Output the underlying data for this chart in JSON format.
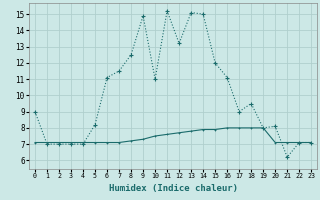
{
  "title": "",
  "xlabel": "Humidex (Indice chaleur)",
  "ylabel": "",
  "background_color": "#cce8e6",
  "grid_color": "#b0cfcd",
  "line_color": "#1a6b6b",
  "xlim": [
    -0.5,
    23.5
  ],
  "ylim": [
    5.5,
    15.7
  ],
  "yticks": [
    6,
    7,
    8,
    9,
    10,
    11,
    12,
    13,
    14,
    15
  ],
  "xtick_labels": [
    "0",
    "1",
    "2",
    "3",
    "4",
    "5",
    "6",
    "7",
    "8",
    "9",
    "10",
    "11",
    "12",
    "13",
    "14",
    "15",
    "16",
    "17",
    "18",
    "19",
    "20",
    "21",
    "22",
    "23"
  ],
  "series1_x": [
    0,
    1,
    2,
    3,
    4,
    5,
    6,
    7,
    8,
    9,
    10,
    11,
    12,
    13,
    14,
    15,
    16,
    17,
    18,
    19,
    20,
    21,
    22,
    23
  ],
  "series1_y": [
    9,
    7,
    7,
    7,
    7.0,
    8.2,
    11.1,
    11.5,
    12.5,
    14.9,
    11.0,
    15.2,
    13.2,
    15.1,
    15.0,
    12.0,
    11.1,
    9.0,
    9.5,
    8.0,
    8.1,
    6.2,
    7.1,
    7.1
  ],
  "series2_x": [
    0,
    1,
    2,
    3,
    4,
    5,
    6,
    7,
    8,
    9,
    10,
    11,
    12,
    13,
    14,
    15,
    16,
    17,
    18,
    19,
    20,
    21,
    22,
    23
  ],
  "series2_y": [
    7.1,
    7.1,
    7.1,
    7.1,
    7.1,
    7.1,
    7.1,
    7.1,
    7.2,
    7.3,
    7.5,
    7.6,
    7.7,
    7.8,
    7.9,
    7.9,
    8.0,
    8.0,
    8.0,
    8.0,
    7.1,
    7.1,
    7.1,
    7.1
  ]
}
